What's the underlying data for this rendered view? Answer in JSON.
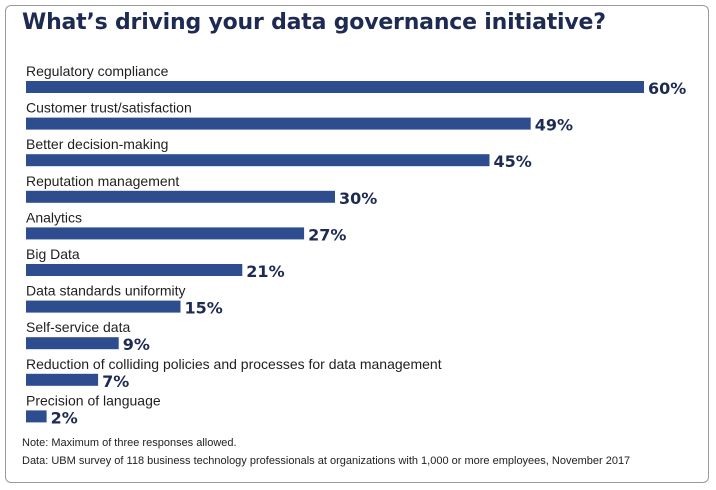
{
  "colors": {
    "bar": "#2e4d8f",
    "title": "#1d2a52",
    "value": "#1d2a52"
  },
  "chart_data": {
    "type": "bar",
    "orientation": "horizontal",
    "title": "What’s driving your data governance initiative?",
    "categories": [
      "Regulatory compliance",
      "Customer trust/satisfaction",
      "Better decision-making",
      "Reputation management",
      "Analytics",
      "Big Data",
      "Data standards uniformity",
      "Self-service data",
      "Reduction of colliding policies and processes for data management",
      "Precision of language"
    ],
    "values": [
      60,
      49,
      45,
      30,
      27,
      21,
      15,
      9,
      7,
      2
    ],
    "value_labels": [
      "60%",
      "49%",
      "45%",
      "30%",
      "27%",
      "21%",
      "15%",
      "9%",
      "7%",
      "2%"
    ],
    "xlabel": "",
    "ylabel": "",
    "xlim": [
      0,
      60
    ],
    "grid": false,
    "legend": "none"
  },
  "notes": {
    "note": "Note: Maximum of three responses allowed.",
    "source": "Data: UBM survey of 118 business technology professionals at organizations with 1,000 or more employees, November 2017"
  }
}
